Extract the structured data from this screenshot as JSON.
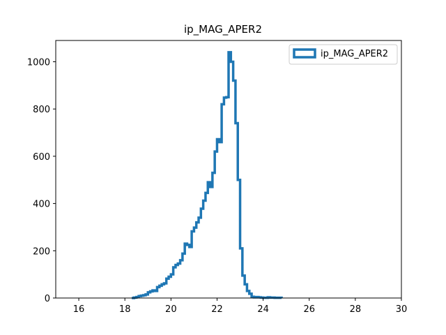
{
  "chart_data": {
    "type": "histogram",
    "title": "ip_MAG_APER2",
    "xlabel": "",
    "ylabel": "",
    "xlim": [
      15,
      30
    ],
    "ylim": [
      0,
      1090
    ],
    "xticks": [
      "16",
      "18",
      "20",
      "22",
      "24",
      "26",
      "28",
      "30"
    ],
    "yticks": [
      "0",
      "200",
      "400",
      "600",
      "800",
      "1000"
    ],
    "grid": false,
    "legend": {
      "placement": "top-right",
      "entries": [
        "ip_MAG_APER2"
      ]
    },
    "series": [
      {
        "name": "ip_MAG_APER2",
        "color": "#1f77b4",
        "style": "step",
        "bins": [
          [
            18.3,
            0
          ],
          [
            18.4,
            2
          ],
          [
            18.5,
            4
          ],
          [
            18.6,
            8
          ],
          [
            18.7,
            10
          ],
          [
            18.8,
            12
          ],
          [
            18.9,
            15
          ],
          [
            19.0,
            24
          ],
          [
            19.1,
            28
          ],
          [
            19.2,
            32
          ],
          [
            19.3,
            30
          ],
          [
            19.4,
            46
          ],
          [
            19.5,
            52
          ],
          [
            19.6,
            58
          ],
          [
            19.7,
            62
          ],
          [
            19.8,
            82
          ],
          [
            19.9,
            90
          ],
          [
            20.0,
            100
          ],
          [
            20.1,
            130
          ],
          [
            20.2,
            140
          ],
          [
            20.3,
            146
          ],
          [
            20.4,
            160
          ],
          [
            20.5,
            188
          ],
          [
            20.6,
            230
          ],
          [
            20.7,
            225
          ],
          [
            20.8,
            216
          ],
          [
            20.9,
            282
          ],
          [
            21.0,
            298
          ],
          [
            21.1,
            320
          ],
          [
            21.2,
            340
          ],
          [
            21.3,
            378
          ],
          [
            21.4,
            412
          ],
          [
            21.5,
            445
          ],
          [
            21.6,
            490
          ],
          [
            21.7,
            470
          ],
          [
            21.8,
            530
          ],
          [
            21.9,
            620
          ],
          [
            22.0,
            672
          ],
          [
            22.1,
            660
          ],
          [
            22.2,
            820
          ],
          [
            22.3,
            848
          ],
          [
            22.4,
            850
          ],
          [
            22.5,
            1040
          ],
          [
            22.6,
            1000
          ],
          [
            22.7,
            920
          ],
          [
            22.8,
            740
          ],
          [
            22.9,
            500
          ],
          [
            23.0,
            210
          ],
          [
            23.1,
            95
          ],
          [
            23.2,
            58
          ],
          [
            23.3,
            30
          ],
          [
            23.4,
            18
          ],
          [
            23.5,
            5
          ],
          [
            23.6,
            3
          ],
          [
            23.7,
            4
          ],
          [
            23.8,
            3
          ],
          [
            23.9,
            2
          ],
          [
            24.0,
            1
          ],
          [
            24.1,
            1
          ],
          [
            24.2,
            3
          ],
          [
            24.3,
            2
          ],
          [
            24.4,
            2
          ],
          [
            24.5,
            1
          ],
          [
            24.6,
            1
          ],
          [
            24.7,
            1
          ],
          [
            24.8,
            0
          ]
        ]
      }
    ]
  }
}
